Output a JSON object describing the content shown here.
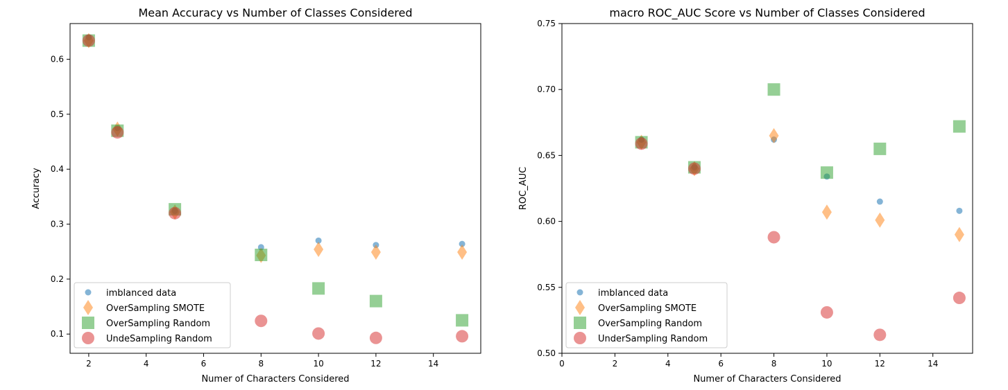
{
  "chart_data": [
    {
      "type": "scatter",
      "title": "Mean Accuracy vs Number of Classes Considered",
      "xlabel": "Numer of Characters Considered",
      "ylabel": "Accuracy",
      "xlim": [
        1.35,
        15.65
      ],
      "ylim": [
        0.065,
        0.665
      ],
      "xticks": [
        2,
        4,
        6,
        8,
        10,
        12,
        14
      ],
      "yticks": [
        0.1,
        0.2,
        0.3,
        0.4,
        0.5,
        0.6
      ],
      "grid": false,
      "legend_position": "lower-left",
      "series": [
        {
          "name": "imblanced data",
          "marker": "circle-small",
          "color": "#1f77b4",
          "x": [
            2,
            3,
            5,
            8,
            10,
            12,
            15
          ],
          "y": [
            0.64,
            0.475,
            0.324,
            0.258,
            0.27,
            0.262,
            0.264
          ]
        },
        {
          "name": "OverSampling SMOTE",
          "marker": "diamond",
          "color": "#ff7f0e",
          "x": [
            2,
            3,
            5,
            8,
            10,
            12,
            15
          ],
          "y": [
            0.634,
            0.473,
            0.322,
            0.243,
            0.254,
            0.249,
            0.249
          ]
        },
        {
          "name": "OverSampling Random",
          "marker": "square",
          "color": "#2ca02c",
          "x": [
            2,
            3,
            5,
            8,
            10,
            12,
            15
          ],
          "y": [
            0.634,
            0.47,
            0.327,
            0.244,
            0.183,
            0.16,
            0.125
          ]
        },
        {
          "name": "UndeSampling Random",
          "marker": "circle-large",
          "color": "#d62728",
          "x": [
            2,
            3,
            5,
            8,
            10,
            12,
            15
          ],
          "y": [
            0.634,
            0.467,
            0.32,
            0.124,
            0.101,
            0.093,
            0.096
          ]
        }
      ]
    },
    {
      "type": "scatter",
      "title": "macro ROC_AUC Score vs Number of Classes Considered",
      "xlabel": "Numer of Characters Considered",
      "ylabel": "ROC_AUC",
      "xlim": [
        0,
        15.5
      ],
      "ylim": [
        0.5,
        0.75
      ],
      "xticks": [
        0,
        2,
        4,
        6,
        8,
        10,
        12,
        14
      ],
      "yticks": [
        "0.50",
        "0.55",
        "0.60",
        "0.65",
        "0.70",
        "0.75"
      ],
      "grid": false,
      "legend_position": "lower-left",
      "series": [
        {
          "name": "imblanced data",
          "marker": "circle-small",
          "color": "#1f77b4",
          "x": [
            3,
            5,
            8,
            10,
            12,
            15
          ],
          "y": [
            0.662,
            0.641,
            0.662,
            0.634,
            0.615,
            0.608
          ]
        },
        {
          "name": "OverSampling SMOTE",
          "marker": "diamond",
          "color": "#ff7f0e",
          "x": [
            3,
            5,
            8,
            10,
            12,
            15
          ],
          "y": [
            0.66,
            0.64,
            0.665,
            0.607,
            0.601,
            0.59
          ]
        },
        {
          "name": "OverSampling Random",
          "marker": "square",
          "color": "#2ca02c",
          "x": [
            3,
            5,
            8,
            10,
            12,
            15
          ],
          "y": [
            0.66,
            0.641,
            0.7,
            0.637,
            0.655,
            0.672
          ]
        },
        {
          "name": "UnderSampling Random",
          "marker": "circle-large",
          "color": "#d62728",
          "x": [
            3,
            5,
            8,
            10,
            12,
            15
          ],
          "y": [
            0.659,
            0.64,
            0.588,
            0.531,
            0.514,
            0.542
          ]
        }
      ]
    }
  ]
}
